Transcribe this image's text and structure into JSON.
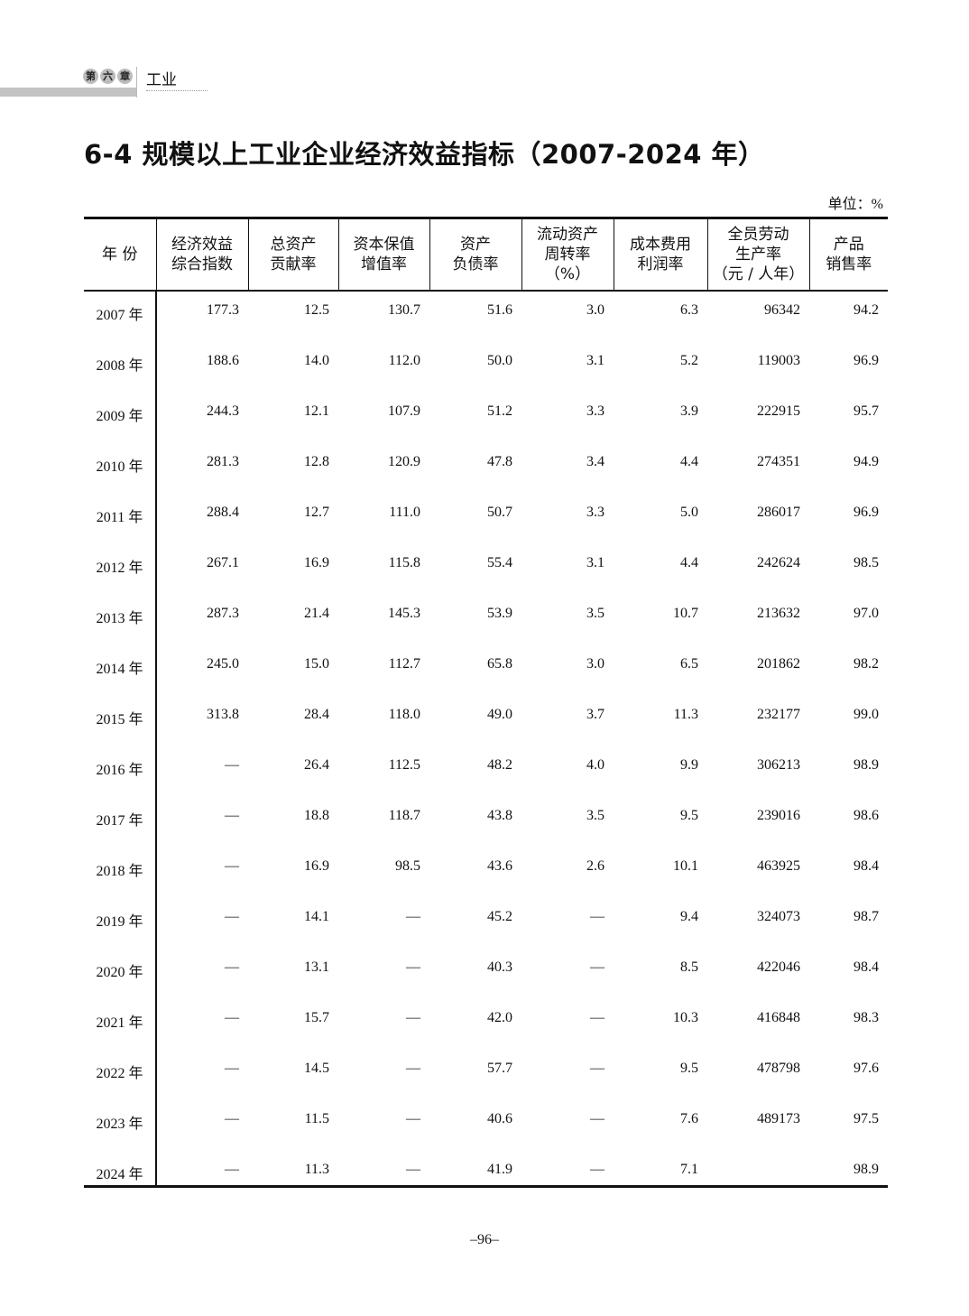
{
  "header": {
    "chapter_chars": [
      "第",
      "六",
      "章"
    ],
    "section": "工业"
  },
  "title": "6-4  规模以上工业企业经济效益指标（2007-2024 年）",
  "unit": "单位：%",
  "table": {
    "columns": [
      [
        "年 份"
      ],
      [
        "经济效益",
        "综合指数"
      ],
      [
        "总资产",
        "贡献率"
      ],
      [
        "资本保值",
        "增值率"
      ],
      [
        "资产",
        "负债率"
      ],
      [
        "流动资产",
        "周转率",
        "（%）"
      ],
      [
        "成本费用",
        "利润率"
      ],
      [
        "全员劳动",
        "生产率",
        "（元 / 人年）"
      ],
      [
        "产品",
        "销售率"
      ]
    ],
    "rows": [
      [
        "2007 年",
        "177.3",
        "12.5",
        "130.7",
        "51.6",
        "3.0",
        "6.3",
        "96342",
        "94.2"
      ],
      [
        "2008 年",
        "188.6",
        "14.0",
        "112.0",
        "50.0",
        "3.1",
        "5.2",
        "119003",
        "96.9"
      ],
      [
        "2009 年",
        "244.3",
        "12.1",
        "107.9",
        "51.2",
        "3.3",
        "3.9",
        "222915",
        "95.7"
      ],
      [
        "2010 年",
        "281.3",
        "12.8",
        "120.9",
        "47.8",
        "3.4",
        "4.4",
        "274351",
        "94.9"
      ],
      [
        "2011 年",
        "288.4",
        "12.7",
        "111.0",
        "50.7",
        "3.3",
        "5.0",
        "286017",
        "96.9"
      ],
      [
        "2012 年",
        "267.1",
        "16.9",
        "115.8",
        "55.4",
        "3.1",
        "4.4",
        "242624",
        "98.5"
      ],
      [
        "2013 年",
        "287.3",
        "21.4",
        "145.3",
        "53.9",
        "3.5",
        "10.7",
        "213632",
        "97.0"
      ],
      [
        "2014 年",
        "245.0",
        "15.0",
        "112.7",
        "65.8",
        "3.0",
        "6.5",
        "201862",
        "98.2"
      ],
      [
        "2015 年",
        "313.8",
        "28.4",
        "118.0",
        "49.0",
        "3.7",
        "11.3",
        "232177",
        "99.0"
      ],
      [
        "2016 年",
        "—",
        "26.4",
        "112.5",
        "48.2",
        "4.0",
        "9.9",
        "306213",
        "98.9"
      ],
      [
        "2017 年",
        "—",
        "18.8",
        "118.7",
        "43.8",
        "3.5",
        "9.5",
        "239016",
        "98.6"
      ],
      [
        "2018 年",
        "—",
        "16.9",
        "98.5",
        "43.6",
        "2.6",
        "10.1",
        "463925",
        "98.4"
      ],
      [
        "2019 年",
        "—",
        "14.1",
        "—",
        "45.2",
        "—",
        "9.4",
        "324073",
        "98.7"
      ],
      [
        "2020 年",
        "—",
        "13.1",
        "—",
        "40.3",
        "—",
        "8.5",
        "422046",
        "98.4"
      ],
      [
        "2021 年",
        "—",
        "15.7",
        "—",
        "42.0",
        "—",
        "10.3",
        "416848",
        "98.3"
      ],
      [
        "2022 年",
        "—",
        "14.5",
        "—",
        "57.7",
        "—",
        "9.5",
        "478798",
        "97.6"
      ],
      [
        "2023 年",
        "—",
        "11.5",
        "—",
        "40.6",
        "—",
        "7.6",
        "489173",
        "97.5"
      ],
      [
        "2024 年",
        "—",
        "11.3",
        "—",
        "41.9",
        "—",
        "7.1",
        "",
        "98.9"
      ]
    ]
  },
  "page_number": "–96–"
}
